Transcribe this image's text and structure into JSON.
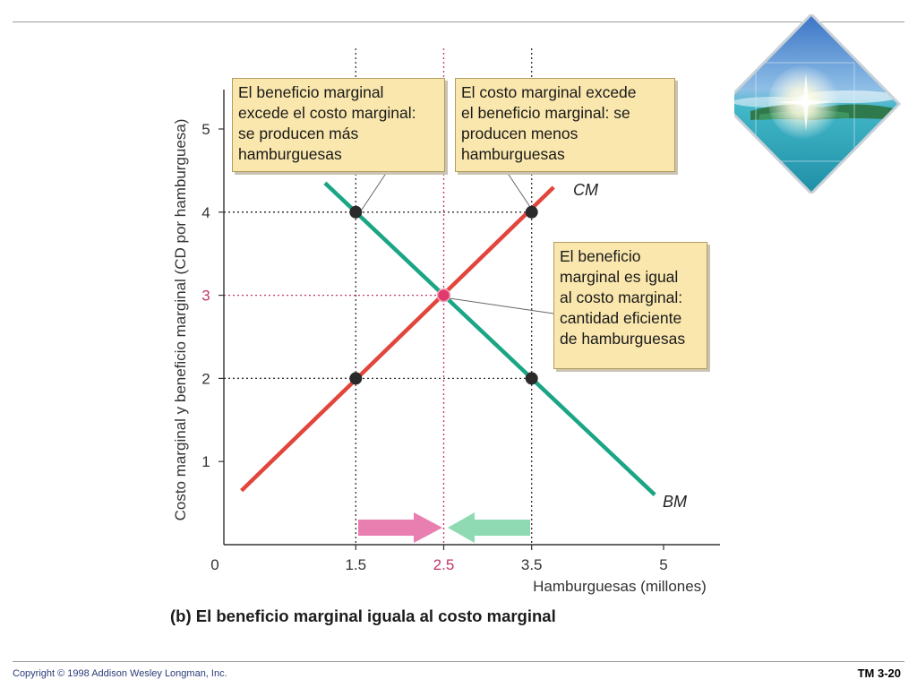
{
  "footer": {
    "copyright": "Copyright © 1998 Addison Wesley Longman, Inc.",
    "slide_id": "TM 3-20"
  },
  "decor": {
    "icon": "tropical-island-photo-icon"
  },
  "colors": {
    "mc_line": "#e2453b",
    "mb_line": "#1aa584",
    "eq_point": "#e13a6c",
    "eq_label": "#c2356d",
    "point": "#2a2a2a",
    "callout_bg": "#fae7ad",
    "arrow_right": "#e97fb0",
    "arrow_left": "#8fdab2"
  },
  "chart_data": {
    "type": "line",
    "ylabel": "Costo marginal y beneficio marginal (CD por hamburguesa)",
    "xlabel": "Hamburguesas (millones)",
    "xlim": [
      0,
      5.5
    ],
    "ylim": [
      0,
      5.5
    ],
    "origin_label": "0",
    "x_ticks": [
      "1.5",
      "2.5",
      "3.5",
      "5"
    ],
    "x_tick_values": [
      1.5,
      2.5,
      3.5,
      5
    ],
    "y_ticks": [
      "1",
      "2",
      "3",
      "4",
      "5"
    ],
    "y_tick_values": [
      1,
      2,
      3,
      4,
      5
    ],
    "highlight_tick": "3",
    "series": [
      {
        "name": "CM",
        "x": [
          0.2,
          3.75
        ],
        "y": [
          0.65,
          4.3
        ]
      },
      {
        "name": "BM",
        "x": [
          1.15,
          4.9
        ],
        "y": [
          4.35,
          0.6
        ]
      }
    ],
    "points": [
      {
        "x": 1.5,
        "y": 4,
        "kind": "normal"
      },
      {
        "x": 3.5,
        "y": 4,
        "kind": "normal"
      },
      {
        "x": 1.5,
        "y": 2,
        "kind": "normal"
      },
      {
        "x": 3.5,
        "y": 2,
        "kind": "normal"
      },
      {
        "x": 2.5,
        "y": 3,
        "kind": "equilibrium"
      }
    ],
    "annotations": [
      {
        "id": "left",
        "text": "El beneficio marginal excede el costo marginal: se producen más hamburguesas"
      },
      {
        "id": "right",
        "text": "El costo marginal excede el beneficio marginal: se producen menos hamburguesas"
      },
      {
        "id": "eq",
        "text": "El beneficio marginal es igual al costo marginal: cantidad eficiente de hamburguesas"
      }
    ],
    "caption": "(b) El beneficio marginal iguala al costo marginal"
  },
  "callouts": {
    "left_lines": [
      "El beneficio marginal",
      "excede el costo marginal:",
      "se producen más",
      "hamburguesas"
    ],
    "right_lines": [
      "El costo marginal excede",
      "el beneficio marginal: se",
      "producen menos",
      "hamburguesas"
    ],
    "eq_lines": [
      "El beneficio",
      "marginal es igual",
      "al costo marginal:",
      "cantidad eficiente",
      "de hamburguesas"
    ]
  }
}
